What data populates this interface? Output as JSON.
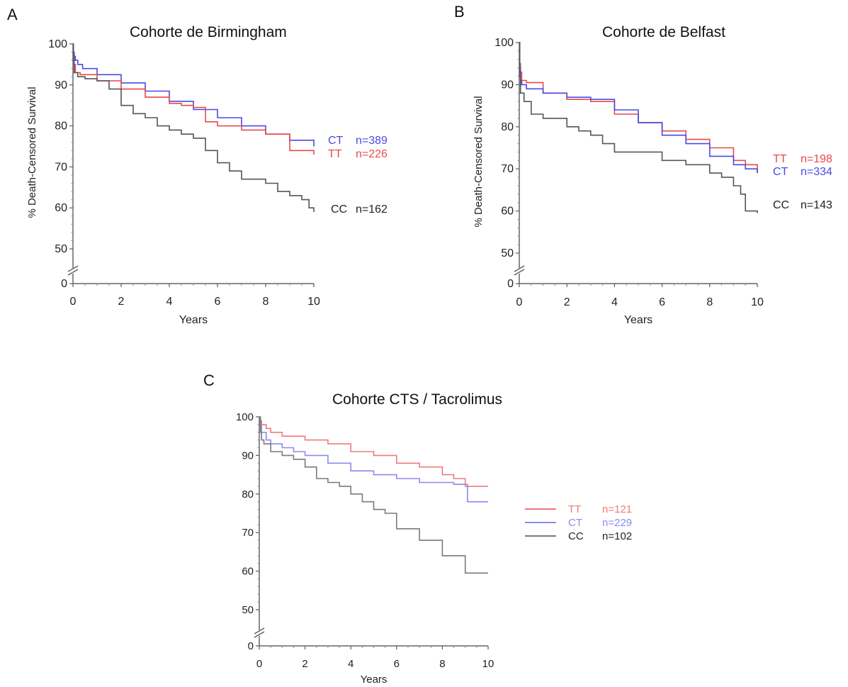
{
  "chart_data": [
    {
      "type": "line",
      "panel_label": "A",
      "title": "Cohorte de Birmingham",
      "xlabel": "Years",
      "ylabel": "% Death-Censored Survival",
      "xlim": [
        0,
        10
      ],
      "ylim": [
        0,
        100
      ],
      "y_axis_break": true,
      "xticks": [
        "0",
        "2",
        "4",
        "6",
        "8",
        "10"
      ],
      "yticks": [
        "0",
        "50",
        "60",
        "70",
        "80",
        "90",
        "100"
      ],
      "series": [
        {
          "name": "CT",
          "n_label": "n=389",
          "color": "#4a4ae6",
          "x": [
            0,
            0.02,
            0.05,
            0.1,
            0.2,
            0.4,
            1,
            2,
            3,
            4,
            5,
            6,
            7,
            8,
            9,
            10
          ],
          "y": [
            100,
            98,
            97,
            96,
            95,
            94,
            92.5,
            90.5,
            88.5,
            86,
            84,
            82,
            80,
            78,
            76.5,
            75
          ]
        },
        {
          "name": "TT",
          "n_label": "n=226",
          "color": "#e64a4a",
          "x": [
            0,
            0.02,
            0.05,
            0.1,
            0.3,
            1,
            2,
            3,
            4,
            4.5,
            5,
            5.5,
            6,
            7,
            8,
            9,
            9.3,
            10
          ],
          "y": [
            100,
            97,
            95,
            93,
            92.5,
            91,
            89,
            87,
            85.5,
            85,
            84.5,
            81,
            80,
            79,
            78,
            74,
            74,
            73
          ]
        },
        {
          "name": "CC",
          "n_label": "n=162",
          "color": "#555555",
          "x": [
            0,
            0.02,
            0.05,
            0.2,
            0.5,
            1,
            1.5,
            2,
            2.5,
            3,
            3.5,
            4,
            4.5,
            5,
            5.5,
            6,
            6.5,
            7,
            7.5,
            8,
            8.5,
            9,
            9.5,
            9.8,
            10
          ],
          "y": [
            100,
            96,
            93,
            92,
            91.5,
            91,
            89,
            85,
            83,
            82,
            80,
            79,
            78,
            77,
            74,
            71,
            69,
            67,
            67,
            66,
            64,
            63,
            62,
            60,
            59
          ]
        }
      ]
    },
    {
      "type": "line",
      "panel_label": "B",
      "title": "Cohorte de Belfast",
      "xlabel": "Years",
      "ylabel": "% Death-Censored Survival",
      "xlim": [
        0,
        10
      ],
      "ylim": [
        0,
        100
      ],
      "y_axis_break": true,
      "xticks": [
        "0",
        "2",
        "4",
        "6",
        "8",
        "10"
      ],
      "yticks": [
        "0",
        "50",
        "60",
        "70",
        "80",
        "90",
        "100"
      ],
      "series": [
        {
          "name": "TT",
          "n_label": "n=198",
          "color": "#e64a4a",
          "x": [
            0,
            0.02,
            0.05,
            0.1,
            0.3,
            1,
            2,
            3,
            4,
            5,
            6,
            7,
            8,
            9,
            9.5,
            10
          ],
          "y": [
            100,
            95,
            93,
            91,
            90.5,
            88,
            86.5,
            86,
            83,
            81,
            79,
            77,
            75,
            72,
            71,
            69
          ]
        },
        {
          "name": "CT",
          "n_label": "n=334",
          "color": "#4a4ae6",
          "x": [
            0,
            0.02,
            0.05,
            0.1,
            0.3,
            1,
            2,
            3,
            4,
            5,
            6,
            7,
            8,
            9,
            9.5,
            10
          ],
          "y": [
            100,
            94,
            91,
            90,
            89,
            88,
            87,
            86.5,
            84,
            81,
            78,
            76,
            73,
            71,
            70,
            69
          ]
        },
        {
          "name": "CC",
          "n_label": "n=143",
          "color": "#555555",
          "x": [
            0,
            0.02,
            0.05,
            0.2,
            0.5,
            1,
            2,
            2.5,
            3,
            3.5,
            4,
            5,
            6,
            7,
            8,
            8.5,
            9,
            9.3,
            9.5,
            10
          ],
          "y": [
            100,
            92,
            88,
            86,
            83,
            82,
            80,
            79,
            78,
            76,
            74,
            74,
            72,
            71,
            69,
            68,
            66,
            64,
            60,
            59.5
          ]
        }
      ]
    },
    {
      "type": "line",
      "panel_label": "C",
      "title": "Cohorte CTS / Tacrolimus",
      "xlabel": "Years",
      "ylabel": "",
      "xlim": [
        0,
        10
      ],
      "ylim": [
        0,
        100
      ],
      "y_axis_break": true,
      "xticks": [
        "0",
        "2",
        "4",
        "6",
        "8",
        "10"
      ],
      "yticks": [
        "0",
        "50",
        "60",
        "70",
        "80",
        "90",
        "100"
      ],
      "series": [
        {
          "name": "TT",
          "n_label": "n=121",
          "color": "#f07a7a",
          "x": [
            0,
            0.05,
            0.1,
            0.3,
            0.5,
            1,
            1.5,
            2,
            3,
            4,
            5,
            6,
            7,
            8,
            8.5,
            9,
            10
          ],
          "y": [
            100,
            99,
            98,
            97,
            96,
            95,
            95,
            94,
            93,
            91,
            90,
            88,
            87,
            85,
            84,
            82,
            82
          ]
        },
        {
          "name": "CT",
          "n_label": "n=229",
          "color": "#8a8af0",
          "x": [
            0,
            0.05,
            0.1,
            0.3,
            0.5,
            1,
            1.5,
            2,
            3,
            4,
            5,
            6,
            7,
            8,
            8.5,
            9,
            9.1,
            10
          ],
          "y": [
            100,
            98,
            96,
            94,
            93,
            92,
            91,
            90,
            88,
            86,
            85,
            84,
            83,
            83,
            82.5,
            82.5,
            78,
            78
          ]
        },
        {
          "name": "CC",
          "n_label": "n=102",
          "color": "#7a7a7a",
          "x": [
            0,
            0.05,
            0.1,
            0.2,
            0.5,
            1,
            1.5,
            2,
            2.5,
            3,
            3.5,
            4,
            4.5,
            5,
            5.5,
            6,
            7,
            8,
            9,
            10
          ],
          "y": [
            100,
            96,
            94,
            93,
            91,
            90,
            89,
            87,
            84,
            83,
            82,
            80,
            78,
            76,
            75,
            71,
            68,
            64,
            59.5,
            59.5
          ]
        }
      ]
    }
  ]
}
